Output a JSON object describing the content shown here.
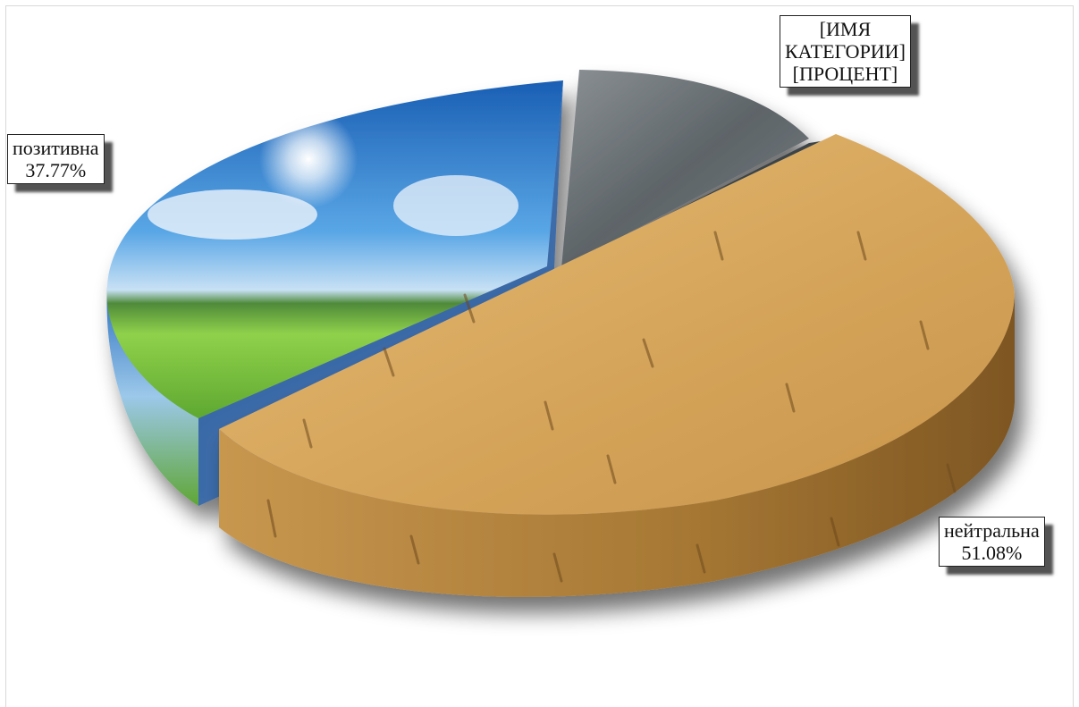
{
  "chart_data": {
    "type": "pie",
    "title": "",
    "slices": [
      {
        "label": "позитивна",
        "value": 37.77,
        "value_label": "37.77%",
        "texture": "sky-field"
      },
      {
        "label": "[ИМЯ КАТЕГОРИИ]",
        "value": 11.15,
        "value_label": "[ПРОЦЕНТ]",
        "texture": "stone"
      },
      {
        "label": "нейтральна",
        "value": 51.08,
        "value_label": "51.08%",
        "texture": "wood-cork"
      }
    ],
    "label_style": "boxed-with-shadow",
    "three_d": true,
    "exploded": true
  },
  "labels": {
    "positive": {
      "category": "позитивна",
      "percent": "37.77%"
    },
    "other": {
      "line1": "[ИМЯ",
      "line2": "КАТЕГОРИИ]",
      "line3": "[ПРОЦЕНТ]"
    },
    "neutral": {
      "category": "нейтральна",
      "percent": "51.08%"
    }
  },
  "colors": {
    "sky_top": "#1a5fb4",
    "sky_mid": "#5aa7e6",
    "cloud": "#eef4fb",
    "grass_light": "#8fd14a",
    "grass_dark": "#3f8f24",
    "stone": "#6f767a",
    "wood_top": "#d9ab62",
    "wood_side": "#a57733",
    "slice_edge_blue": "#2f63a8"
  }
}
